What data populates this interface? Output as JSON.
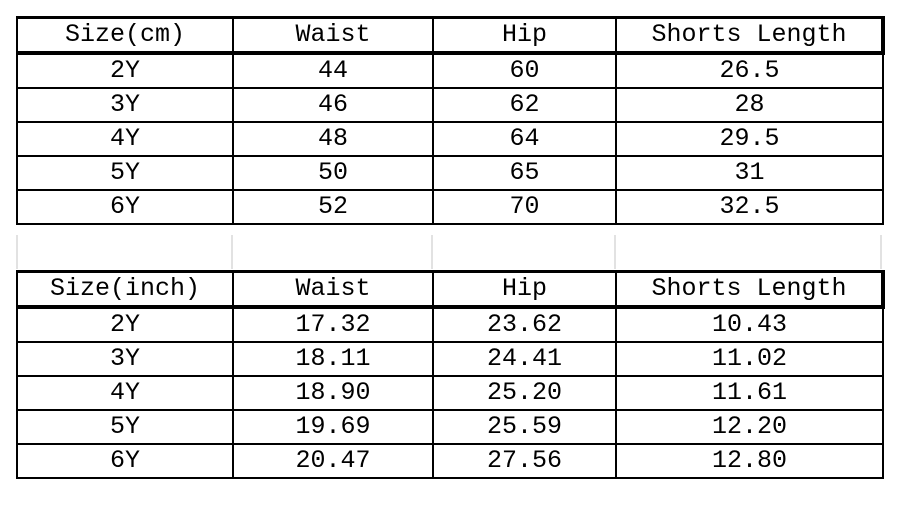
{
  "cm_table": {
    "headers": [
      "Size(cm)",
      "Waist",
      "Hip",
      "Shorts Length"
    ],
    "rows": [
      [
        "2Y",
        "44",
        "60",
        "26.5"
      ],
      [
        "3Y",
        "46",
        "62",
        "28"
      ],
      [
        "4Y",
        "48",
        "64",
        "29.5"
      ],
      [
        "5Y",
        "50",
        "65",
        "31"
      ],
      [
        "6Y",
        "52",
        "70",
        "32.5"
      ]
    ]
  },
  "inch_table": {
    "headers": [
      "Size(inch)",
      "Waist",
      "Hip",
      "Shorts Length"
    ],
    "rows": [
      [
        "2Y",
        "17.32",
        "23.62",
        "10.43"
      ],
      [
        "3Y",
        "18.11",
        "24.41",
        "11.02"
      ],
      [
        "4Y",
        "18.90",
        "25.20",
        "11.61"
      ],
      [
        "5Y",
        "19.69",
        "25.59",
        "12.20"
      ],
      [
        "6Y",
        "20.47",
        "27.56",
        "12.80"
      ]
    ]
  }
}
